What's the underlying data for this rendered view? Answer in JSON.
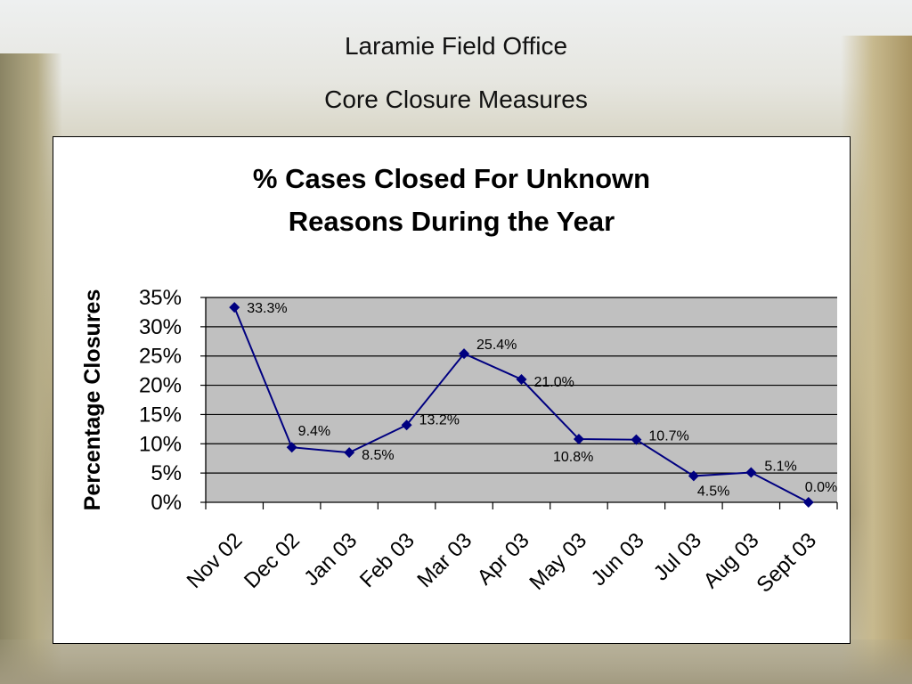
{
  "slide": {
    "title_line1": "Laramie Field Office",
    "title_line2": "Core Closure Measures"
  },
  "chart_data": {
    "type": "line",
    "title_lines": [
      "% Cases Closed For Unknown",
      "Reasons During the Year"
    ],
    "xlabel": "",
    "ylabel": "Percentage Closures",
    "categories": [
      "Nov 02",
      "Dec 02",
      "Jan 03",
      "Feb 03",
      "Mar 03",
      "Apr 03",
      "May 03",
      "Jun 03",
      "Jul 03",
      "Aug 03",
      "Sept 03"
    ],
    "series": [
      {
        "values": [
          33.3,
          9.4,
          8.5,
          13.2,
          25.4,
          21.0,
          10.8,
          10.7,
          4.5,
          5.1,
          0.0
        ],
        "data_labels": [
          "33.3%",
          "9.4%",
          "8.5%",
          "13.2%",
          "25.4%",
          "21.0%",
          "10.8%",
          "10.7%",
          "4.5%",
          "5.1%",
          "0.0%"
        ],
        "color": "#000080"
      }
    ],
    "ylim": [
      0,
      35
    ],
    "y_ticks": [
      "0%",
      "5%",
      "10%",
      "15%",
      "20%",
      "25%",
      "30%",
      "35%"
    ],
    "grid": true,
    "plot_background": "#c0c0c0",
    "legend": "none"
  }
}
